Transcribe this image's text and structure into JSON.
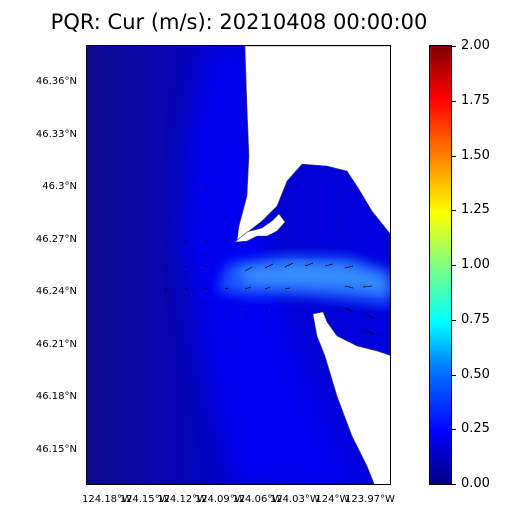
{
  "title": "PQR: Cur (m/s): 20210408 00:00:00",
  "y_axis": {
    "labels": [
      "46.36°N",
      "46.33°N",
      "46.3°N",
      "46.27°N",
      "46.24°N",
      "46.21°N",
      "46.18°N",
      "46.15°N"
    ],
    "values": [
      46.36,
      46.33,
      46.3,
      46.27,
      46.24,
      46.21,
      46.18,
      46.15
    ]
  },
  "x_axis": {
    "labels": [
      "124.18°W",
      "124.15°W",
      "124.12°W",
      "124.09°W",
      "124.06°W",
      "124.03°W",
      "124°W",
      "123.97°W"
    ],
    "values": [
      -124.18,
      -124.15,
      -124.12,
      -124.09,
      -124.06,
      -124.03,
      -124.0,
      -123.97
    ]
  },
  "colorbar": {
    "labels": [
      "0.00",
      "0.25",
      "0.50",
      "0.75",
      "1.00",
      "1.25",
      "1.50",
      "1.75",
      "2.00"
    ],
    "values": [
      0.0,
      0.25,
      0.5,
      0.75,
      1.0,
      1.25,
      1.5,
      1.75,
      2.0
    ],
    "colormap": "jet",
    "range": [
      0.0,
      2.0
    ]
  },
  "colors": {
    "ocean_dark": "#0a0a9a",
    "ocean_mid": "#0000e6",
    "channel_core": "#2a7fff",
    "land": "#ffffff",
    "coastline": "#555555"
  }
}
